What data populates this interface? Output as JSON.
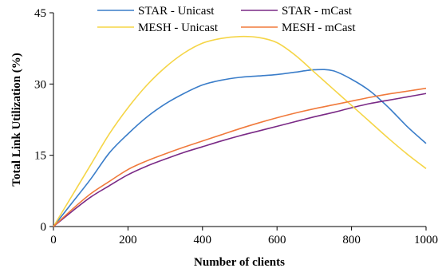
{
  "chart_data": {
    "type": "line",
    "title": "",
    "xlabel": "Number of clients",
    "ylabel": "Total Link Utilization (%)",
    "xlim": [
      0,
      1000
    ],
    "ylim": [
      0,
      45
    ],
    "xticks": [
      0,
      200,
      400,
      600,
      800,
      1000
    ],
    "yticks": [
      0,
      15,
      30,
      45
    ],
    "grid": false,
    "legend_position": "top",
    "series": [
      {
        "name": "STAR - Unicast",
        "color": "#3a7dc9",
        "x": [
          0,
          50,
          100,
          150,
          200,
          250,
          300,
          350,
          400,
          450,
          500,
          550,
          600,
          650,
          700,
          750,
          800,
          850,
          900,
          950,
          1000
        ],
        "y": [
          0,
          5,
          10,
          15.5,
          19.5,
          23,
          25.8,
          28,
          29.8,
          30.8,
          31.4,
          31.7,
          32,
          32.5,
          33,
          32.8,
          31,
          28.5,
          25,
          21,
          17.5
        ]
      },
      {
        "name": "STAR - mCast",
        "color": "#7a2a86",
        "x": [
          0,
          50,
          100,
          150,
          200,
          250,
          300,
          350,
          400,
          450,
          500,
          550,
          600,
          650,
          700,
          750,
          800,
          850,
          900,
          950,
          1000
        ],
        "y": [
          0,
          3.2,
          6.2,
          8.6,
          10.9,
          12.7,
          14.2,
          15.6,
          16.8,
          18,
          19.1,
          20.1,
          21.1,
          22.1,
          23.1,
          24,
          25,
          25.9,
          26.6,
          27.3,
          28
        ]
      },
      {
        "name": "MESH - Unicast",
        "color": "#f5d547",
        "x": [
          0,
          50,
          100,
          150,
          200,
          250,
          300,
          350,
          400,
          450,
          500,
          550,
          600,
          650,
          700,
          750,
          800,
          850,
          900,
          950,
          1000
        ],
        "y": [
          0,
          6.5,
          13,
          19.5,
          25,
          29.7,
          33.5,
          36.5,
          38.6,
          39.6,
          40,
          39.8,
          38.7,
          36,
          32.5,
          29,
          25.5,
          22,
          18.5,
          15.2,
          12.2
        ]
      },
      {
        "name": "MESH - mCast",
        "color": "#f07a3c",
        "x": [
          0,
          50,
          100,
          150,
          200,
          250,
          300,
          350,
          400,
          450,
          500,
          550,
          600,
          650,
          700,
          750,
          800,
          850,
          900,
          950,
          1000
        ],
        "y": [
          0,
          3.6,
          6.9,
          9.5,
          12,
          13.8,
          15.3,
          16.7,
          18,
          19.3,
          20.6,
          21.8,
          22.9,
          23.9,
          24.8,
          25.6,
          26.4,
          27.2,
          27.9,
          28.5,
          29.1
        ]
      }
    ]
  }
}
